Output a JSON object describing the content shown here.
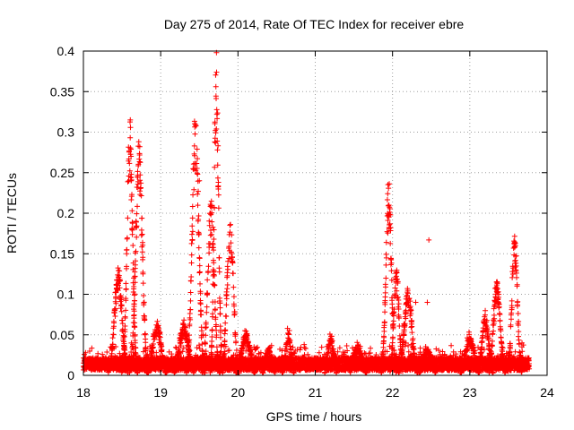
{
  "chart_data": {
    "type": "scatter",
    "title": "Day 275 of 2014, Rate Of TEC Index for receiver ebre",
    "xlabel": "GPS time / hours",
    "ylabel": "ROTI / TECUs",
    "xlim": [
      18,
      24
    ],
    "ylim": [
      0,
      0.4
    ],
    "xticks": [
      "18",
      "19",
      "20",
      "21",
      "22",
      "23",
      "24"
    ],
    "yticks": [
      "0",
      "0.05",
      "0.1",
      "0.15",
      "0.2",
      "0.25",
      "0.3",
      "0.35",
      "0.4"
    ],
    "grid": true,
    "marker": "+",
    "color": "#ff0000",
    "x_end": 23.77,
    "noise_level": 0.014,
    "noise_spread": 0.008,
    "points_per_hour": 900,
    "bumps": [
      {
        "center": 18.45,
        "peak": 0.12,
        "width": 0.07
      },
      {
        "center": 18.6,
        "peak": 0.29,
        "width": 0.05
      },
      {
        "center": 18.72,
        "peak": 0.27,
        "width": 0.06
      },
      {
        "center": 18.95,
        "peak": 0.06,
        "width": 0.08
      },
      {
        "center": 19.3,
        "peak": 0.06,
        "width": 0.08
      },
      {
        "center": 19.45,
        "peak": 0.3,
        "width": 0.06
      },
      {
        "center": 19.65,
        "peak": 0.2,
        "width": 0.06
      },
      {
        "center": 19.72,
        "peak": 0.36,
        "width": 0.04
      },
      {
        "center": 19.9,
        "peak": 0.18,
        "width": 0.06
      },
      {
        "center": 20.1,
        "peak": 0.05,
        "width": 0.08
      },
      {
        "center": 20.4,
        "peak": 0.03,
        "width": 0.06
      },
      {
        "center": 20.65,
        "peak": 0.05,
        "width": 0.05
      },
      {
        "center": 21.2,
        "peak": 0.045,
        "width": 0.05
      },
      {
        "center": 21.55,
        "peak": 0.035,
        "width": 0.08
      },
      {
        "center": 21.95,
        "peak": 0.22,
        "width": 0.05
      },
      {
        "center": 22.05,
        "peak": 0.12,
        "width": 0.05
      },
      {
        "center": 22.2,
        "peak": 0.1,
        "width": 0.07
      },
      {
        "center": 22.45,
        "peak": 0.03,
        "width": 0.08
      },
      {
        "center": 23.0,
        "peak": 0.045,
        "width": 0.08
      },
      {
        "center": 23.2,
        "peak": 0.07,
        "width": 0.06
      },
      {
        "center": 23.35,
        "peak": 0.11,
        "width": 0.06
      },
      {
        "center": 23.58,
        "peak": 0.16,
        "width": 0.05
      }
    ],
    "outliers": [
      {
        "x": 18.68,
        "y": 0.19
      },
      {
        "x": 18.65,
        "y": 0.12
      },
      {
        "x": 19.5,
        "y": 0.24
      },
      {
        "x": 22.47,
        "y": 0.167
      },
      {
        "x": 22.3,
        "y": 0.09
      },
      {
        "x": 22.45,
        "y": 0.09
      },
      {
        "x": 19.6,
        "y": 0.1
      },
      {
        "x": 19.55,
        "y": 0.05
      }
    ]
  }
}
